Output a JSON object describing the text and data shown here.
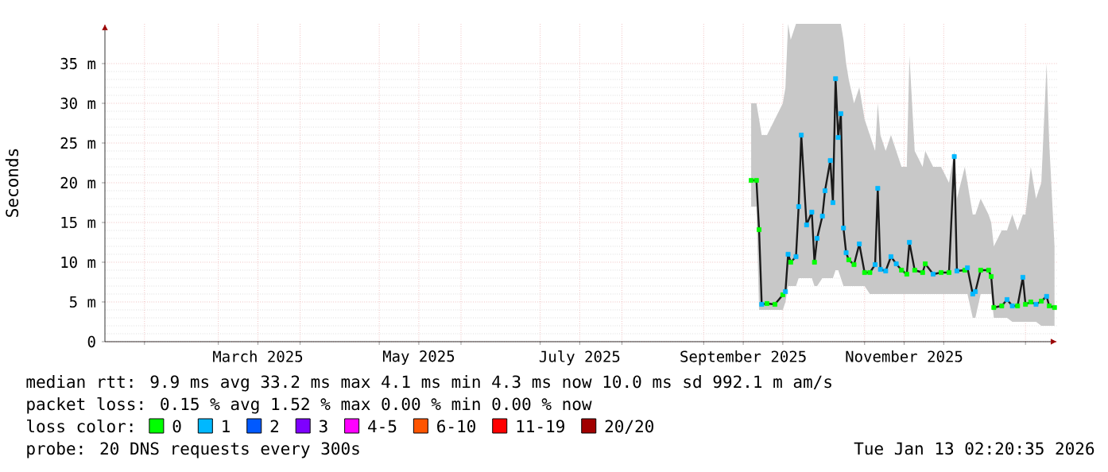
{
  "chart_data": {
    "type": "line",
    "ylabel": "Seconds",
    "legend_title": "loss color:",
    "legend": "bottom",
    "grid": true,
    "xlim": [
      "2025-01-17",
      "2026-01-13"
    ],
    "xticks": [
      {
        "value": "2025-02-01",
        "label": null
      },
      {
        "value": "2025-03-01",
        "label": null
      },
      {
        "value": "2025-03-16",
        "label": "March 2025"
      },
      {
        "value": "2025-04-01",
        "label": null
      },
      {
        "value": "2025-05-01",
        "label": null
      },
      {
        "value": "2025-05-16",
        "label": "May 2025"
      },
      {
        "value": "2025-06-01",
        "label": null
      },
      {
        "value": "2025-07-01",
        "label": null
      },
      {
        "value": "2025-07-16",
        "label": "July 2025"
      },
      {
        "value": "2025-08-01",
        "label": null
      },
      {
        "value": "2025-09-01",
        "label": null
      },
      {
        "value": "2025-09-16",
        "label": "September 2025"
      },
      {
        "value": "2025-10-01",
        "label": null
      },
      {
        "value": "2025-11-01",
        "label": null
      },
      {
        "value": "2025-11-16",
        "label": "November 2025"
      },
      {
        "value": "2025-12-01",
        "label": null
      },
      {
        "value": "2026-01-01",
        "label": null
      }
    ],
    "ylim": [
      0,
      40
    ],
    "yticks": [
      0,
      {
        "value": 5,
        "label": "5 m"
      },
      {
        "value": 10,
        "label": "10 m"
      },
      {
        "value": 15,
        "label": "15 m"
      },
      {
        "value": 20,
        "label": "20 m"
      },
      {
        "value": 25,
        "label": "25 m"
      },
      {
        "value": 30,
        "label": "30 m"
      },
      {
        "value": 35,
        "label": "35 m"
      }
    ],
    "x": [
      "2025-09-19",
      "2025-09-21",
      "2025-09-22",
      "2025-09-23",
      "2025-09-25",
      "2025-09-28",
      "2025-10-01",
      "2025-10-02",
      "2025-10-03",
      "2025-10-04",
      "2025-10-06",
      "2025-10-07",
      "2025-10-08",
      "2025-10-10",
      "2025-10-12",
      "2025-10-13",
      "2025-10-14",
      "2025-10-16",
      "2025-10-17",
      "2025-10-19",
      "2025-10-20",
      "2025-10-21",
      "2025-10-22",
      "2025-10-23",
      "2025-10-24",
      "2025-10-25",
      "2025-10-26",
      "2025-10-28",
      "2025-10-30",
      "2025-11-01",
      "2025-11-03",
      "2025-11-05",
      "2025-11-06",
      "2025-11-07",
      "2025-11-09",
      "2025-11-11",
      "2025-11-13",
      "2025-11-15",
      "2025-11-17",
      "2025-11-18",
      "2025-11-20",
      "2025-11-23",
      "2025-11-24",
      "2025-11-27",
      "2025-11-30",
      "2025-12-03",
      "2025-12-05",
      "2025-12-06",
      "2025-12-09",
      "2025-12-10",
      "2025-12-12",
      "2025-12-13",
      "2025-12-15",
      "2025-12-18",
      "2025-12-19",
      "2025-12-20",
      "2025-12-23",
      "2025-12-25",
      "2025-12-27",
      "2025-12-29",
      "2025-12-31",
      "2026-01-01",
      "2026-01-03",
      "2026-01-05",
      "2026-01-07",
      "2026-01-09",
      "2026-01-10",
      "2026-01-12"
    ],
    "series": [
      {
        "color": "#1a1a1a",
        "values": [
          20.3,
          20.3,
          14.1,
          4.7,
          4.8,
          4.7,
          5.9,
          6.3,
          11,
          10,
          10.7,
          17,
          26,
          14.7,
          16.3,
          10,
          13,
          15.8,
          19,
          22.8,
          17.5,
          33.1,
          25.7,
          28.7,
          14.3,
          11.2,
          10.3,
          9.7,
          12.3,
          8.7,
          8.7,
          9.7,
          19.3,
          9.1,
          8.9,
          10.7,
          9.8,
          9,
          8.5,
          12.5,
          9,
          8.7,
          9.8,
          8.5,
          8.7,
          8.7,
          23.3,
          8.9,
          9,
          9.3,
          6,
          6.3,
          9,
          9,
          8.2,
          4.3,
          4.5,
          5.3,
          4.5,
          4.5,
          8.1,
          4.7,
          5,
          4.7,
          5.1,
          5.7,
          4.5,
          4.3
        ],
        "lower": [
          17,
          17,
          4,
          4,
          4,
          4,
          4,
          5,
          7,
          7,
          7,
          8,
          8,
          8,
          8,
          7,
          7,
          8,
          8,
          8,
          8,
          9,
          9,
          8,
          7,
          7,
          7,
          7,
          7,
          7,
          6,
          6,
          6,
          6,
          6,
          6,
          6,
          6,
          6,
          6,
          6,
          6,
          6,
          6,
          6,
          6,
          6,
          6,
          6,
          6,
          3,
          3,
          6,
          6,
          6,
          3,
          3,
          3,
          2.5,
          2.5,
          2.5,
          2.5,
          2.5,
          2.5,
          2,
          2,
          2,
          2
        ],
        "upper": [
          30,
          30,
          28,
          26,
          26,
          28,
          30,
          32,
          40,
          38,
          40,
          40,
          40,
          40,
          40,
          40,
          40,
          40,
          40,
          40,
          40,
          40,
          40,
          40,
          38,
          35,
          33,
          30,
          32,
          28,
          26,
          24,
          30,
          26,
          24,
          26,
          24,
          22,
          22,
          36,
          24,
          22,
          24,
          22,
          22,
          20,
          24,
          18,
          22,
          20,
          16,
          16,
          18,
          16,
          15,
          12,
          14,
          14,
          16,
          14,
          16,
          16,
          22,
          18,
          20,
          35,
          25,
          12
        ]
      },
      {
        "type": "scatter",
        "marker": "square",
        "name": "0",
        "color": "#00ff00",
        "values": [
          20.3,
          20.3,
          14.1,
          null,
          4.8,
          4.7,
          5.9,
          null,
          null,
          10,
          null,
          null,
          null,
          null,
          null,
          10,
          null,
          null,
          null,
          null,
          null,
          null,
          null,
          null,
          null,
          null,
          10.3,
          9.7,
          null,
          8.7,
          8.7,
          null,
          null,
          null,
          null,
          null,
          null,
          9,
          8.5,
          null,
          9,
          8.7,
          9.8,
          null,
          8.7,
          8.7,
          null,
          null,
          9,
          null,
          null,
          null,
          9,
          9,
          8.2,
          4.3,
          4.5,
          null,
          null,
          4.5,
          null,
          4.7,
          5,
          null,
          5.1,
          null,
          4.5,
          4.3
        ]
      },
      {
        "type": "scatter",
        "marker": "square",
        "name": "1",
        "color": "#00b8ff",
        "values": [
          null,
          null,
          null,
          4.7,
          null,
          null,
          null,
          6.3,
          11,
          null,
          10.7,
          17,
          26,
          14.7,
          16.3,
          null,
          13,
          15.8,
          19,
          22.8,
          17.5,
          33.1,
          25.7,
          28.7,
          14.3,
          11.2,
          null,
          null,
          12.3,
          null,
          null,
          9.7,
          19.3,
          9.1,
          8.9,
          10.7,
          9.8,
          null,
          null,
          12.5,
          null,
          null,
          null,
          8.5,
          null,
          null,
          23.3,
          8.9,
          null,
          9.3,
          6,
          6.3,
          null,
          null,
          null,
          null,
          null,
          5.3,
          4.5,
          null,
          8.1,
          null,
          null,
          4.7,
          null,
          5.7,
          null,
          null
        ]
      },
      {
        "type": "scatter",
        "marker": "square",
        "name": "2",
        "color": "#0059ff",
        "values": [
          null,
          null,
          null,
          null,
          null,
          null,
          null,
          null,
          null,
          null,
          null,
          null,
          null,
          null,
          null,
          null,
          null,
          null,
          null,
          null,
          null,
          null,
          null,
          null,
          null,
          null,
          null,
          null,
          null,
          null,
          null,
          null,
          null,
          null,
          null,
          null,
          null,
          null,
          null,
          null,
          null,
          null,
          null,
          null,
          null,
          null,
          null,
          null,
          null,
          null,
          null,
          null,
          null,
          null,
          null,
          null,
          null,
          null,
          null,
          null,
          null,
          null,
          null,
          null,
          null,
          null,
          null,
          null
        ]
      },
      {
        "type": "scatter",
        "marker": "square",
        "name": "3",
        "color": "#7e00ff",
        "values": [
          null,
          null,
          null,
          null,
          null,
          null,
          null,
          null,
          null,
          null,
          null,
          null,
          null,
          null,
          null,
          null,
          null,
          null,
          null,
          null,
          null,
          null,
          null,
          null,
          null,
          null,
          null,
          null,
          null,
          null,
          null,
          null,
          null,
          null,
          null,
          null,
          null,
          null,
          null,
          null,
          null,
          null,
          null,
          null,
          null,
          null,
          null,
          null,
          null,
          null,
          null,
          null,
          null,
          null,
          null,
          null,
          null,
          null,
          null,
          null,
          null,
          null,
          null,
          null,
          null,
          null,
          null,
          null
        ]
      },
      {
        "type": "scatter",
        "marker": "square",
        "name": "4-5",
        "color": "#ff00ff",
        "values": [
          null,
          null,
          null,
          null,
          null,
          null,
          null,
          null,
          null,
          null,
          null,
          null,
          null,
          null,
          null,
          null,
          null,
          null,
          null,
          null,
          null,
          null,
          null,
          null,
          null,
          null,
          null,
          null,
          null,
          null,
          null,
          null,
          null,
          null,
          null,
          null,
          null,
          null,
          null,
          null,
          null,
          null,
          null,
          null,
          null,
          null,
          null,
          null,
          null,
          null,
          null,
          null,
          null,
          null,
          null,
          null,
          null,
          null,
          null,
          null,
          null,
          null,
          null,
          null,
          null,
          null,
          null,
          null
        ]
      },
      {
        "type": "scatter",
        "marker": "square",
        "name": "6-10",
        "color": "#ff5500",
        "values": [
          null,
          null,
          null,
          null,
          null,
          null,
          null,
          null,
          null,
          null,
          null,
          null,
          null,
          null,
          null,
          null,
          null,
          null,
          null,
          null,
          null,
          null,
          null,
          null,
          null,
          null,
          null,
          null,
          null,
          null,
          null,
          null,
          null,
          null,
          null,
          null,
          null,
          null,
          null,
          null,
          null,
          null,
          null,
          null,
          null,
          null,
          null,
          null,
          null,
          null,
          null,
          null,
          null,
          null,
          null,
          null,
          null,
          null,
          null,
          null,
          null,
          null,
          null,
          null,
          null,
          null,
          null,
          null
        ]
      },
      {
        "type": "scatter",
        "marker": "square",
        "name": "11-19",
        "color": "#ff0000",
        "values": [
          null,
          null,
          null,
          null,
          null,
          null,
          null,
          null,
          null,
          null,
          null,
          null,
          null,
          null,
          null,
          null,
          null,
          null,
          null,
          null,
          null,
          null,
          null,
          null,
          null,
          null,
          null,
          null,
          null,
          null,
          null,
          null,
          null,
          null,
          null,
          null,
          null,
          null,
          null,
          null,
          null,
          null,
          null,
          null,
          null,
          null,
          null,
          null,
          null,
          null,
          null,
          null,
          null,
          null,
          null,
          null,
          null,
          null,
          null,
          null,
          null,
          null,
          null,
          null,
          null,
          null,
          null,
          null
        ]
      },
      {
        "type": "scatter",
        "marker": "square",
        "name": "20/20",
        "color": "#a10000",
        "values": [
          null,
          null,
          null,
          null,
          null,
          null,
          null,
          null,
          null,
          null,
          null,
          null,
          null,
          null,
          null,
          null,
          null,
          null,
          null,
          null,
          null,
          null,
          null,
          null,
          null,
          null,
          null,
          null,
          null,
          null,
          null,
          null,
          null,
          null,
          null,
          null,
          null,
          null,
          null,
          null,
          null,
          null,
          null,
          null,
          null,
          null,
          null,
          null,
          null,
          null,
          null,
          null,
          null,
          null,
          null,
          null,
          null,
          null,
          null,
          null,
          null,
          null,
          null,
          null,
          null,
          null,
          null,
          null
        ]
      }
    ],
    "annotations": [
      "median rtt: 9.9 ms avg 33.2 ms max 4.1 ms min 4.3 ms now 10.0 ms sd 992.1 m am/s",
      "packet loss: 0.15 % avg 1.52 % max 0.00 % min 0.00 % now",
      "probe: 20 DNS requests every 300s",
      "Tue Jan 13 02:20:35 2026"
    ]
  }
}
